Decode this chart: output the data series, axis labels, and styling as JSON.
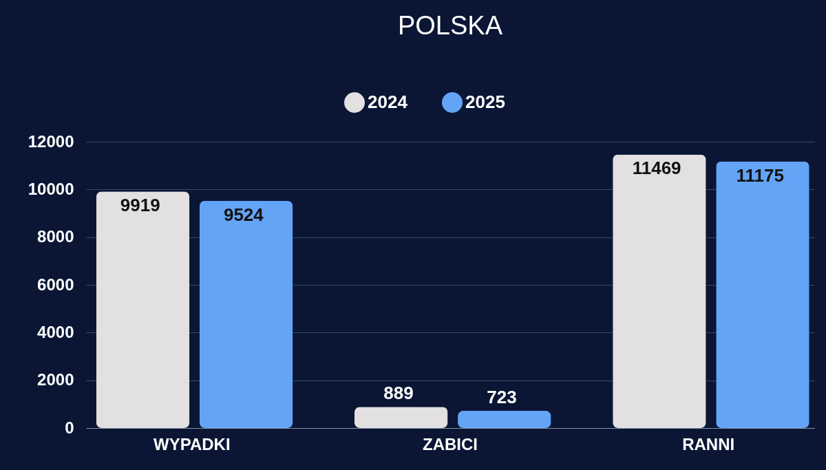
{
  "chart_data": {
    "type": "bar",
    "title": "POLSKA",
    "categories": [
      "WYPADKI",
      "ZABICI",
      "RANNI"
    ],
    "series": [
      {
        "name": "2024",
        "color": "#e2e0e0",
        "values": [
          9919,
          889,
          11469
        ]
      },
      {
        "name": "2025",
        "color": "#64a4f7",
        "values": [
          9524,
          723,
          11175
        ]
      }
    ],
    "ylim": [
      0,
      12000
    ],
    "yticks": [
      0,
      2000,
      4000,
      6000,
      8000,
      10000,
      12000
    ],
    "grid": "y",
    "legend": "top",
    "data_labels": true
  }
}
